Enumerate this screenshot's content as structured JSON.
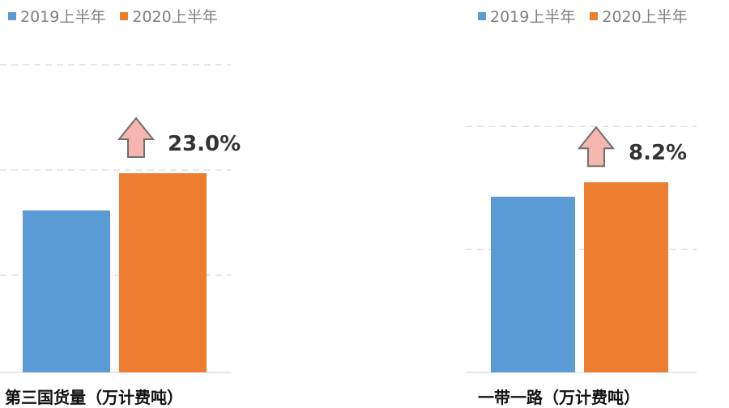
{
  "colors": {
    "series_2019": "#5b9bd5",
    "series_2020": "#ed7d31",
    "grid": "#d9d9d9",
    "arrow_fill": "#f4b6ae",
    "arrow_stroke": "#6f6f6f"
  },
  "chart_data": [
    {
      "type": "bar",
      "categories": [
        "第三国货量（万计费吨）"
      ],
      "series": [
        {
          "name": "2019上半年",
          "values": [
            1.0
          ]
        },
        {
          "name": "2020上半年",
          "values": [
            1.23
          ]
        }
      ],
      "annotation": "23.0%",
      "xlabel": "第三国货量（万计费吨）",
      "ylim": [
        0,
        2.0
      ],
      "grid": true,
      "legend": "top-left"
    },
    {
      "type": "bar",
      "categories": [
        "一带一路（万计费吨）"
      ],
      "series": [
        {
          "name": "2019上半年",
          "values": [
            1.0
          ]
        },
        {
          "name": "2020上半年",
          "values": [
            1.082
          ]
        }
      ],
      "annotation": "8.2%",
      "xlabel": "一带一路（万计费吨）",
      "ylim": [
        0,
        1.4
      ],
      "grid": true,
      "legend": "top-right"
    }
  ]
}
